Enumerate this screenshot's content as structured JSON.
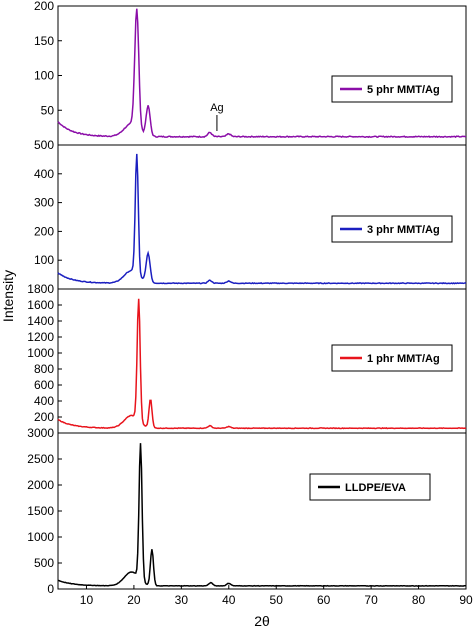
{
  "chart_data": {
    "type": "line",
    "xlabel": "2θ",
    "ylabel": "Intensity",
    "xlim": [
      4,
      90
    ],
    "x_ticks": [
      "10",
      "20",
      "30",
      "40",
      "50",
      "60",
      "70",
      "80",
      "90"
    ],
    "panels": [
      {
        "legend": "5 phr MMT/Ag",
        "color": "#8b0ea8",
        "ylim": [
          0,
          200
        ],
        "y_ticks": [
          "50",
          "100",
          "150",
          "200"
        ],
        "annotation": {
          "text": "Ag",
          "x": 36
        },
        "baseline": 12,
        "peaks": [
          {
            "x": 20.6,
            "y": 182
          },
          {
            "x": 23.0,
            "y": 55
          },
          {
            "x": 36.0,
            "y": 18
          },
          {
            "x": 40.0,
            "y": 16
          }
        ]
      },
      {
        "legend": "3 phr MMT/Ag",
        "color": "#1b1fc0",
        "ylim": [
          0,
          500
        ],
        "y_ticks": [
          "100",
          "200",
          "300",
          "400",
          "500"
        ],
        "baseline": 20,
        "peaks": [
          {
            "x": 20.6,
            "y": 435
          },
          {
            "x": 23.0,
            "y": 120
          },
          {
            "x": 36.0,
            "y": 30
          },
          {
            "x": 40.0,
            "y": 28
          }
        ]
      },
      {
        "legend": "1 phr MMT/Ag",
        "color": "#e8141c",
        "ylim": [
          0,
          1800
        ],
        "y_ticks": [
          "200",
          "400",
          "600",
          "800",
          "1000",
          "1200",
          "1400",
          "1600",
          "1800"
        ],
        "baseline": 60,
        "peaks": [
          {
            "x": 21.0,
            "y": 1580
          },
          {
            "x": 23.5,
            "y": 420
          },
          {
            "x": 36.0,
            "y": 90
          },
          {
            "x": 40.0,
            "y": 80
          }
        ]
      },
      {
        "legend": "LLDPE/EVA",
        "color": "#000000",
        "ylim": [
          0,
          3000
        ],
        "y_ticks": [
          "0",
          "500",
          "1000",
          "1500",
          "2000",
          "2500",
          "3000"
        ],
        "baseline": 60,
        "peaks": [
          {
            "x": 21.4,
            "y": 2680
          },
          {
            "x": 23.8,
            "y": 760
          },
          {
            "x": 36.2,
            "y": 120
          },
          {
            "x": 40.0,
            "y": 110
          }
        ]
      }
    ]
  }
}
